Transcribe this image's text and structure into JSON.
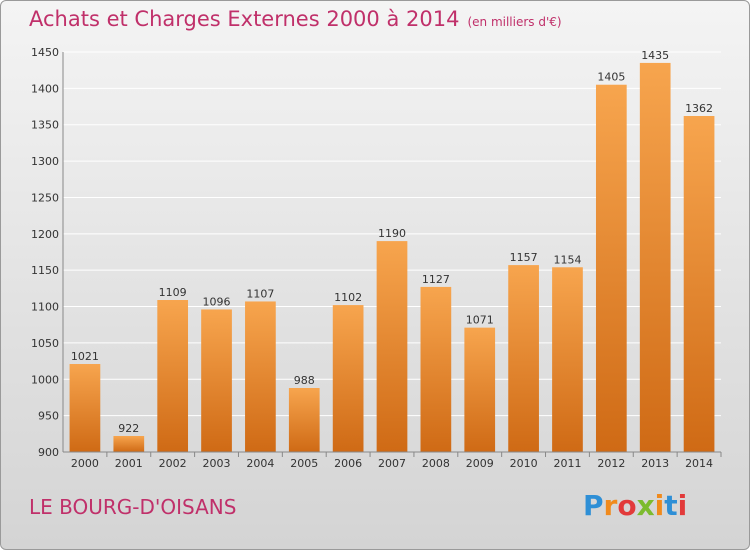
{
  "title": "Achats et Charges Externes 2000 à 2014",
  "title_unit": "(en milliers d'€)",
  "commune": "LE BOURG-D'OISANS",
  "logo_text": "Proxiti",
  "colors": {
    "title": "#c0306a",
    "bar_top": "#f7a54e",
    "bar_bottom": "#cf6a15"
  },
  "chart_data": {
    "type": "bar",
    "title": "Achats et Charges Externes 2000 à 2014",
    "subtitle": "(en milliers d'€)",
    "categories": [
      "2000",
      "2001",
      "2002",
      "2003",
      "2004",
      "2005",
      "2006",
      "2007",
      "2008",
      "2009",
      "2010",
      "2011",
      "2012",
      "2013",
      "2014"
    ],
    "values": [
      1021,
      922,
      1109,
      1096,
      1107,
      988,
      1102,
      1190,
      1127,
      1071,
      1157,
      1154,
      1405,
      1435,
      1362
    ],
    "ylim": [
      900,
      1450
    ],
    "yticks": [
      900,
      950,
      1000,
      1050,
      1100,
      1150,
      1200,
      1250,
      1300,
      1350,
      1400,
      1450
    ],
    "grid": true,
    "xlabel": "",
    "ylabel": ""
  }
}
